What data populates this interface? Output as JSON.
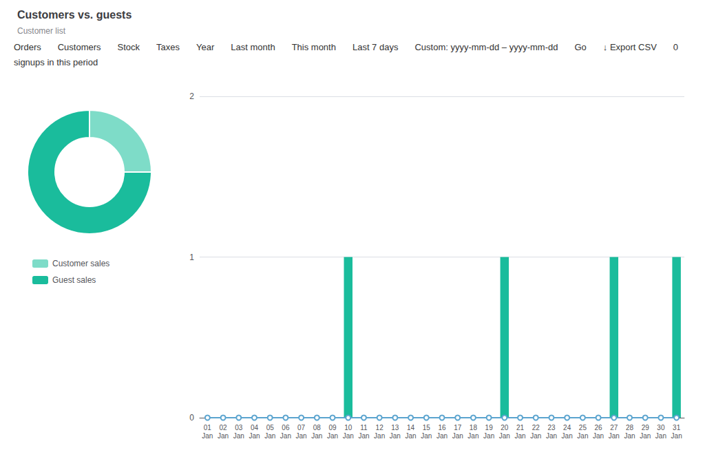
{
  "chart_data": [
    {
      "type": "bar",
      "title": "Customers vs. guests",
      "subtitle": "Customer list",
      "annotations": [
        "Orders",
        "Customers",
        "Stock",
        "Taxes",
        "Year",
        "Last month",
        "This month",
        "Last 7 days",
        "Custom: yyyy-mm-dd – yyyy-mm-dd",
        "Go",
        "↓ Export CSV",
        "0",
        "signups in this period"
      ],
      "categories": [
        "01\nJan",
        "02\nJan",
        "03\nJan",
        "04\nJan",
        "05\nJan",
        "06\nJan",
        "07\nJan",
        "08\nJan",
        "09\nJan",
        "10\nJan",
        "11\nJan",
        "12\nJan",
        "13\nJan",
        "14\nJan",
        "15\nJan",
        "16\nJan",
        "17\nJan",
        "18\nJan",
        "19\nJan",
        "20\nJan",
        "21\nJan",
        "22\nJan",
        "23\nJan",
        "24\nJan",
        "25\nJan",
        "26\nJan",
        "27\nJan",
        "28\nJan",
        "29\nJan",
        "30\nJan",
        "31\nJan"
      ],
      "series": [
        {
          "type": "bar",
          "color": "#1ABC9C",
          "values": [
            0,
            0,
            0,
            0,
            0,
            0,
            0,
            0,
            0,
            1,
            0,
            0,
            0,
            0,
            0,
            0,
            0,
            0,
            0,
            1,
            0,
            0,
            0,
            0,
            0,
            0,
            1,
            0,
            0,
            0,
            1
          ]
        },
        {
          "type": "line",
          "color": "#5BA4CF",
          "marker": "circle",
          "values": [
            0,
            0,
            0,
            0,
            0,
            0,
            0,
            0,
            0,
            0,
            0,
            0,
            0,
            0,
            0,
            0,
            0,
            0,
            0,
            0,
            0,
            0,
            0,
            0,
            0,
            0,
            0,
            0,
            0,
            0,
            0
          ]
        }
      ],
      "ylim": [
        0,
        2
      ],
      "yticks": [
        0,
        1,
        2
      ],
      "grid": true
    },
    {
      "type": "pie",
      "categories": [
        "Customer sales",
        "Guest sales"
      ],
      "values": [
        25,
        75
      ],
      "colors": [
        "#7EDCC8",
        "#1ABC9C"
      ],
      "legend": "bottom"
    }
  ]
}
